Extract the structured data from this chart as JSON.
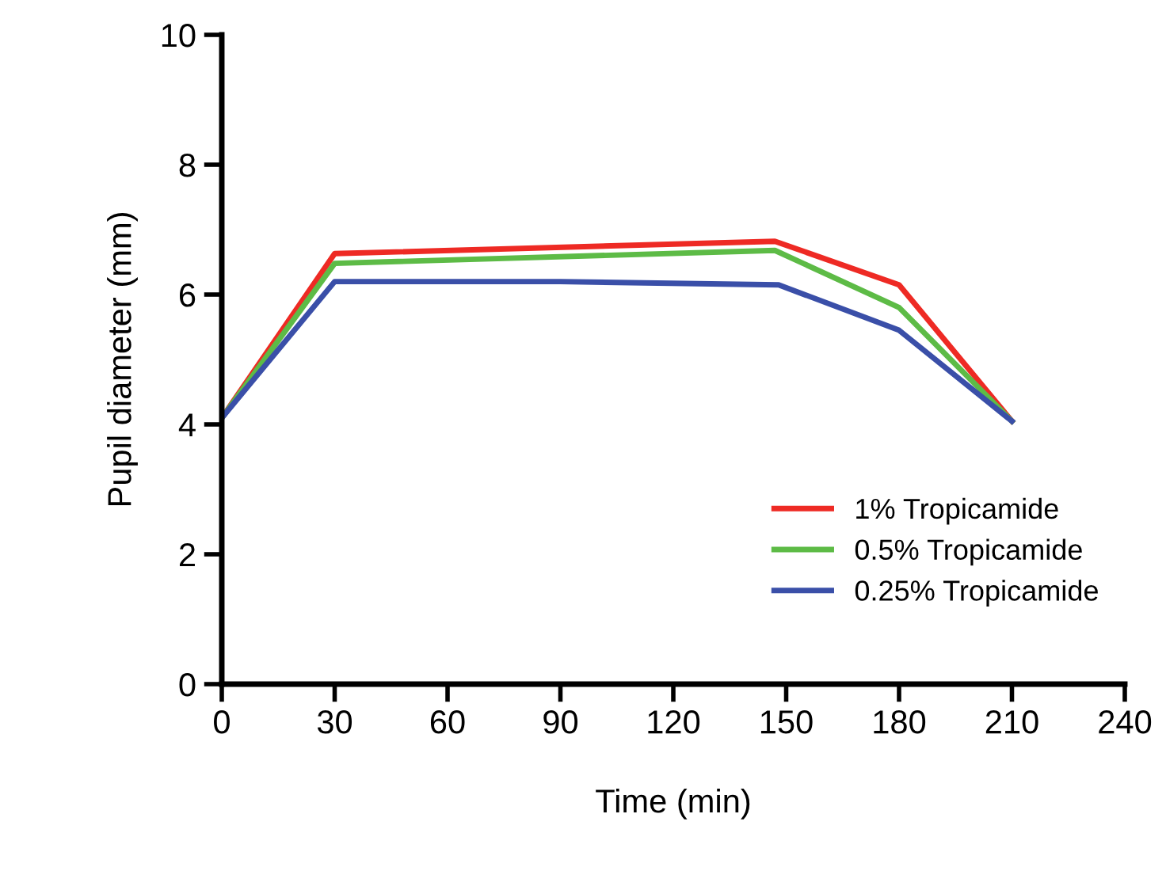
{
  "chart_data": {
    "type": "line",
    "xlabel": "Time (min)",
    "ylabel": "Pupil diameter (mm)",
    "xlim": [
      0,
      240
    ],
    "xticks": [
      0,
      30,
      60,
      90,
      120,
      150,
      180,
      210,
      240
    ],
    "ylim": [
      0,
      10
    ],
    "yticks": [
      0,
      2,
      4,
      6,
      8,
      10
    ],
    "grid": false,
    "legend": "bottom right",
    "marker": "none",
    "series": [
      {
        "name": "1% Tropicamide",
        "color": "#ee2a24",
        "x": [
          0,
          30,
          147,
          180,
          210
        ],
        "values": [
          4.1,
          6.63,
          6.82,
          6.15,
          4.05
        ]
      },
      {
        "name": "0.5% Tropicamide",
        "color": "#5dbb46",
        "x": [
          0,
          30,
          147,
          180,
          210
        ],
        "values": [
          4.1,
          6.48,
          6.68,
          5.8,
          4.05
        ]
      },
      {
        "name": "0.25% Tropicamide",
        "color": "#3a4fa8",
        "x": [
          0,
          30,
          90,
          148,
          180,
          210
        ],
        "values": [
          4.1,
          6.2,
          6.2,
          6.15,
          5.45,
          4.05
        ]
      }
    ]
  }
}
